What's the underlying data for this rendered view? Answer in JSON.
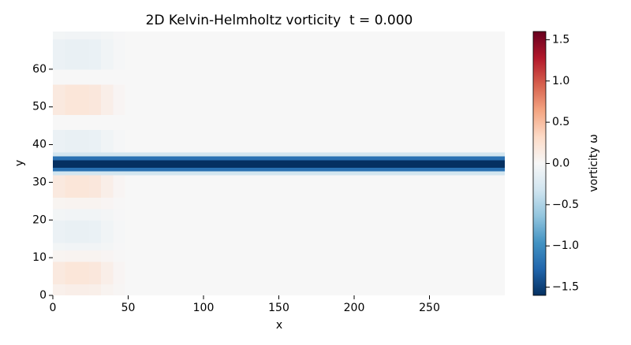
{
  "chart_data": {
    "type": "heatmap",
    "title": "2D Kelvin-Helmholtz vorticity  t = 0.000",
    "x_label": "x",
    "y_label": "y",
    "colorbar_label": "vorticity ω",
    "xlim": [
      0,
      300
    ],
    "ylim": [
      0,
      70
    ],
    "xticks": [
      0,
      50,
      100,
      150,
      200,
      250
    ],
    "yticks": [
      0,
      10,
      20,
      30,
      40,
      50,
      60
    ],
    "x_edges": [
      0,
      8,
      16,
      24,
      32,
      40,
      48,
      300
    ],
    "y_edges": [
      0,
      3,
      9,
      12,
      14,
      20,
      23,
      26,
      32,
      33,
      34,
      35,
      36,
      37,
      38,
      44,
      48,
      56,
      60,
      68,
      70
    ],
    "values": [
      [
        0.08,
        0.1,
        0.1,
        0.09,
        0.05,
        0.02,
        0
      ],
      [
        0.16,
        0.2,
        0.2,
        0.18,
        0.1,
        0.03,
        0
      ],
      [
        0.04,
        0.05,
        0.05,
        0.05,
        0.03,
        0.01,
        0
      ],
      [
        -0.04,
        -0.05,
        -0.05,
        -0.05,
        -0.03,
        -0.01,
        0
      ],
      [
        -0.1,
        -0.12,
        -0.12,
        -0.11,
        -0.06,
        -0.02,
        0
      ],
      [
        -0.04,
        -0.05,
        -0.05,
        -0.05,
        -0.03,
        -0.01,
        0
      ],
      [
        0.04,
        0.05,
        0.05,
        0.05,
        0.03,
        0.01,
        0
      ],
      [
        0.16,
        0.2,
        0.2,
        0.18,
        0.1,
        0.03,
        0
      ],
      [
        -0.3,
        -0.3,
        -0.3,
        -0.3,
        -0.3,
        -0.3,
        -0.3
      ],
      [
        -1.2,
        -1.2,
        -1.2,
        -1.2,
        -1.2,
        -1.2,
        -1.2
      ],
      [
        -1.6,
        -1.6,
        -1.6,
        -1.6,
        -1.6,
        -1.6,
        -1.6
      ],
      [
        -1.6,
        -1.6,
        -1.6,
        -1.6,
        -1.6,
        -1.6,
        -1.6
      ],
      [
        -1.2,
        -1.2,
        -1.2,
        -1.2,
        -1.2,
        -1.2,
        -1.2
      ],
      [
        -0.3,
        -0.3,
        -0.3,
        -0.3,
        -0.3,
        -0.3,
        -0.3
      ],
      [
        -0.1,
        -0.12,
        -0.12,
        -0.11,
        -0.06,
        -0.02,
        0
      ],
      [
        0,
        0,
        0,
        0,
        0,
        0,
        0
      ],
      [
        0.16,
        0.2,
        0.2,
        0.18,
        0.1,
        0.03,
        0
      ],
      [
        0,
        0,
        0,
        0,
        0,
        0,
        0
      ],
      [
        -0.1,
        -0.12,
        -0.12,
        -0.11,
        -0.06,
        -0.02,
        0
      ],
      [
        -0.04,
        -0.05,
        -0.05,
        -0.05,
        -0.03,
        -0.01,
        0
      ]
    ],
    "clim": [
      -1.6,
      1.6
    ],
    "colormap": [
      "#053061",
      "#2166ac",
      "#4393c3",
      "#92c5de",
      "#d1e5f0",
      "#f7f7f7",
      "#fddbc7",
      "#f4a582",
      "#d6604d",
      "#b2182b",
      "#67001f"
    ],
    "cticks": [
      {
        "value": -1.5,
        "label": "−1.5"
      },
      {
        "value": -1.0,
        "label": "−1.0"
      },
      {
        "value": -0.5,
        "label": "−0.5"
      },
      {
        "value": 0,
        "label": "0.0"
      },
      0.5,
      {
        "value": 1.0,
        "label": "1.0"
      },
      1.5
    ]
  }
}
